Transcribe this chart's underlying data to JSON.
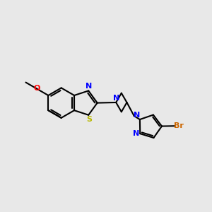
{
  "bg_color": "#e8e8e8",
  "bond_color": "#000000",
  "N_color": "#0000ff",
  "O_color": "#ff0000",
  "S_color": "#b8b800",
  "Br_color": "#cc6600",
  "lw": 1.5,
  "xlim": [
    0,
    10
  ],
  "ylim": [
    2,
    8
  ],
  "figsize": [
    3.0,
    3.0
  ],
  "dpi": 100
}
